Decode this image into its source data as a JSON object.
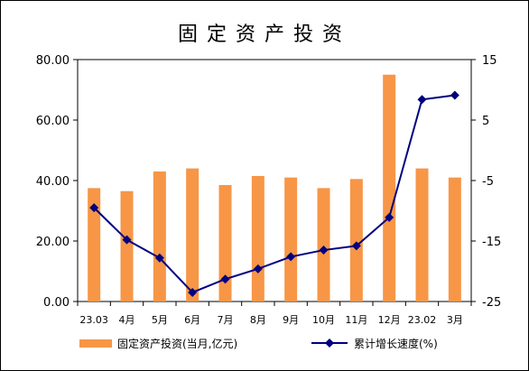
{
  "chart_data": {
    "type": "bar+line",
    "title": "固定资产投资",
    "categories": [
      "23.03",
      "4月",
      "5月",
      "6月",
      "7月",
      "8月",
      "9月",
      "10月",
      "11月",
      "12月",
      "23.02",
      "3月"
    ],
    "series": [
      {
        "name": "固定资产投资(当月,亿元)",
        "type": "bar",
        "axis": "left",
        "color": "#F79646",
        "values": [
          37.5,
          36.5,
          43.0,
          44.0,
          38.5,
          41.5,
          41.0,
          37.5,
          40.5,
          75.0,
          44.0,
          41.0
        ]
      },
      {
        "name": "累计增长速度(%)",
        "type": "line",
        "axis": "right",
        "color": "#000080",
        "values": [
          -9.5,
          -14.8,
          -17.8,
          -23.5,
          -21.3,
          -19.6,
          -17.6,
          -16.5,
          -15.8,
          -11.1,
          8.4,
          9.1
        ]
      }
    ],
    "y_left": {
      "min": 0,
      "max": 80,
      "ticks": [
        "0.00",
        "20.00",
        "40.00",
        "60.00",
        "80.00"
      ]
    },
    "y_right": {
      "min": -25,
      "max": 15,
      "ticks": [
        "-25",
        "-15",
        "-5",
        "5",
        "15"
      ]
    },
    "legend_position": "bottom",
    "grid": false
  }
}
